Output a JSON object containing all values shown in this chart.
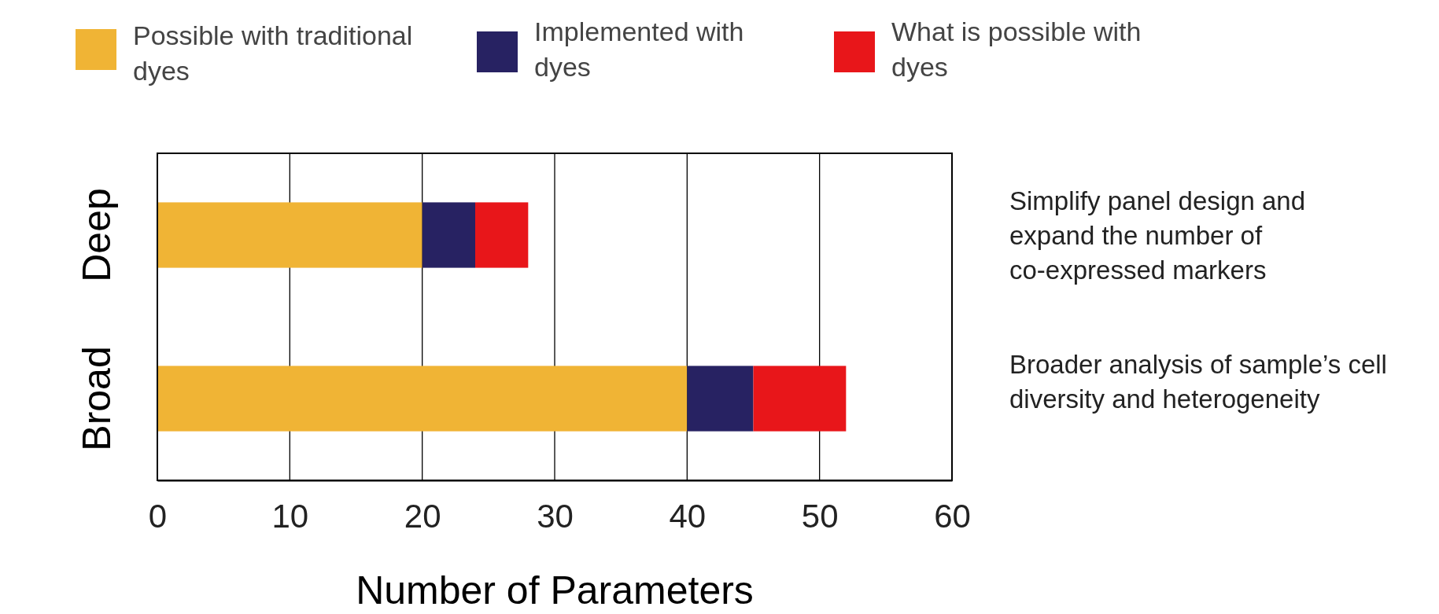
{
  "chart_data": {
    "type": "bar",
    "orientation": "horizontal",
    "stacked": true,
    "xlabel": "Number of Parameters",
    "categories": [
      "Deep",
      "Broad"
    ],
    "series": [
      {
        "name": "Possible with traditional dyes",
        "color": "#f0b435",
        "values": [
          20,
          40
        ]
      },
      {
        "name": "Implemented with dyes",
        "color": "#272262",
        "values": [
          4,
          5
        ]
      },
      {
        "name": "What is possible with dyes",
        "color": "#e8161a",
        "values": [
          4,
          7
        ]
      }
    ],
    "xlim": [
      0,
      60
    ],
    "xticks": [
      0,
      10,
      20,
      30,
      40,
      50,
      60
    ],
    "grid": "x",
    "legend": "top",
    "annotations": [
      "Simplify panel design and expand the number of co-expressed markers",
      "Broader analysis of sample’s cell diversity and heterogeneity"
    ]
  }
}
